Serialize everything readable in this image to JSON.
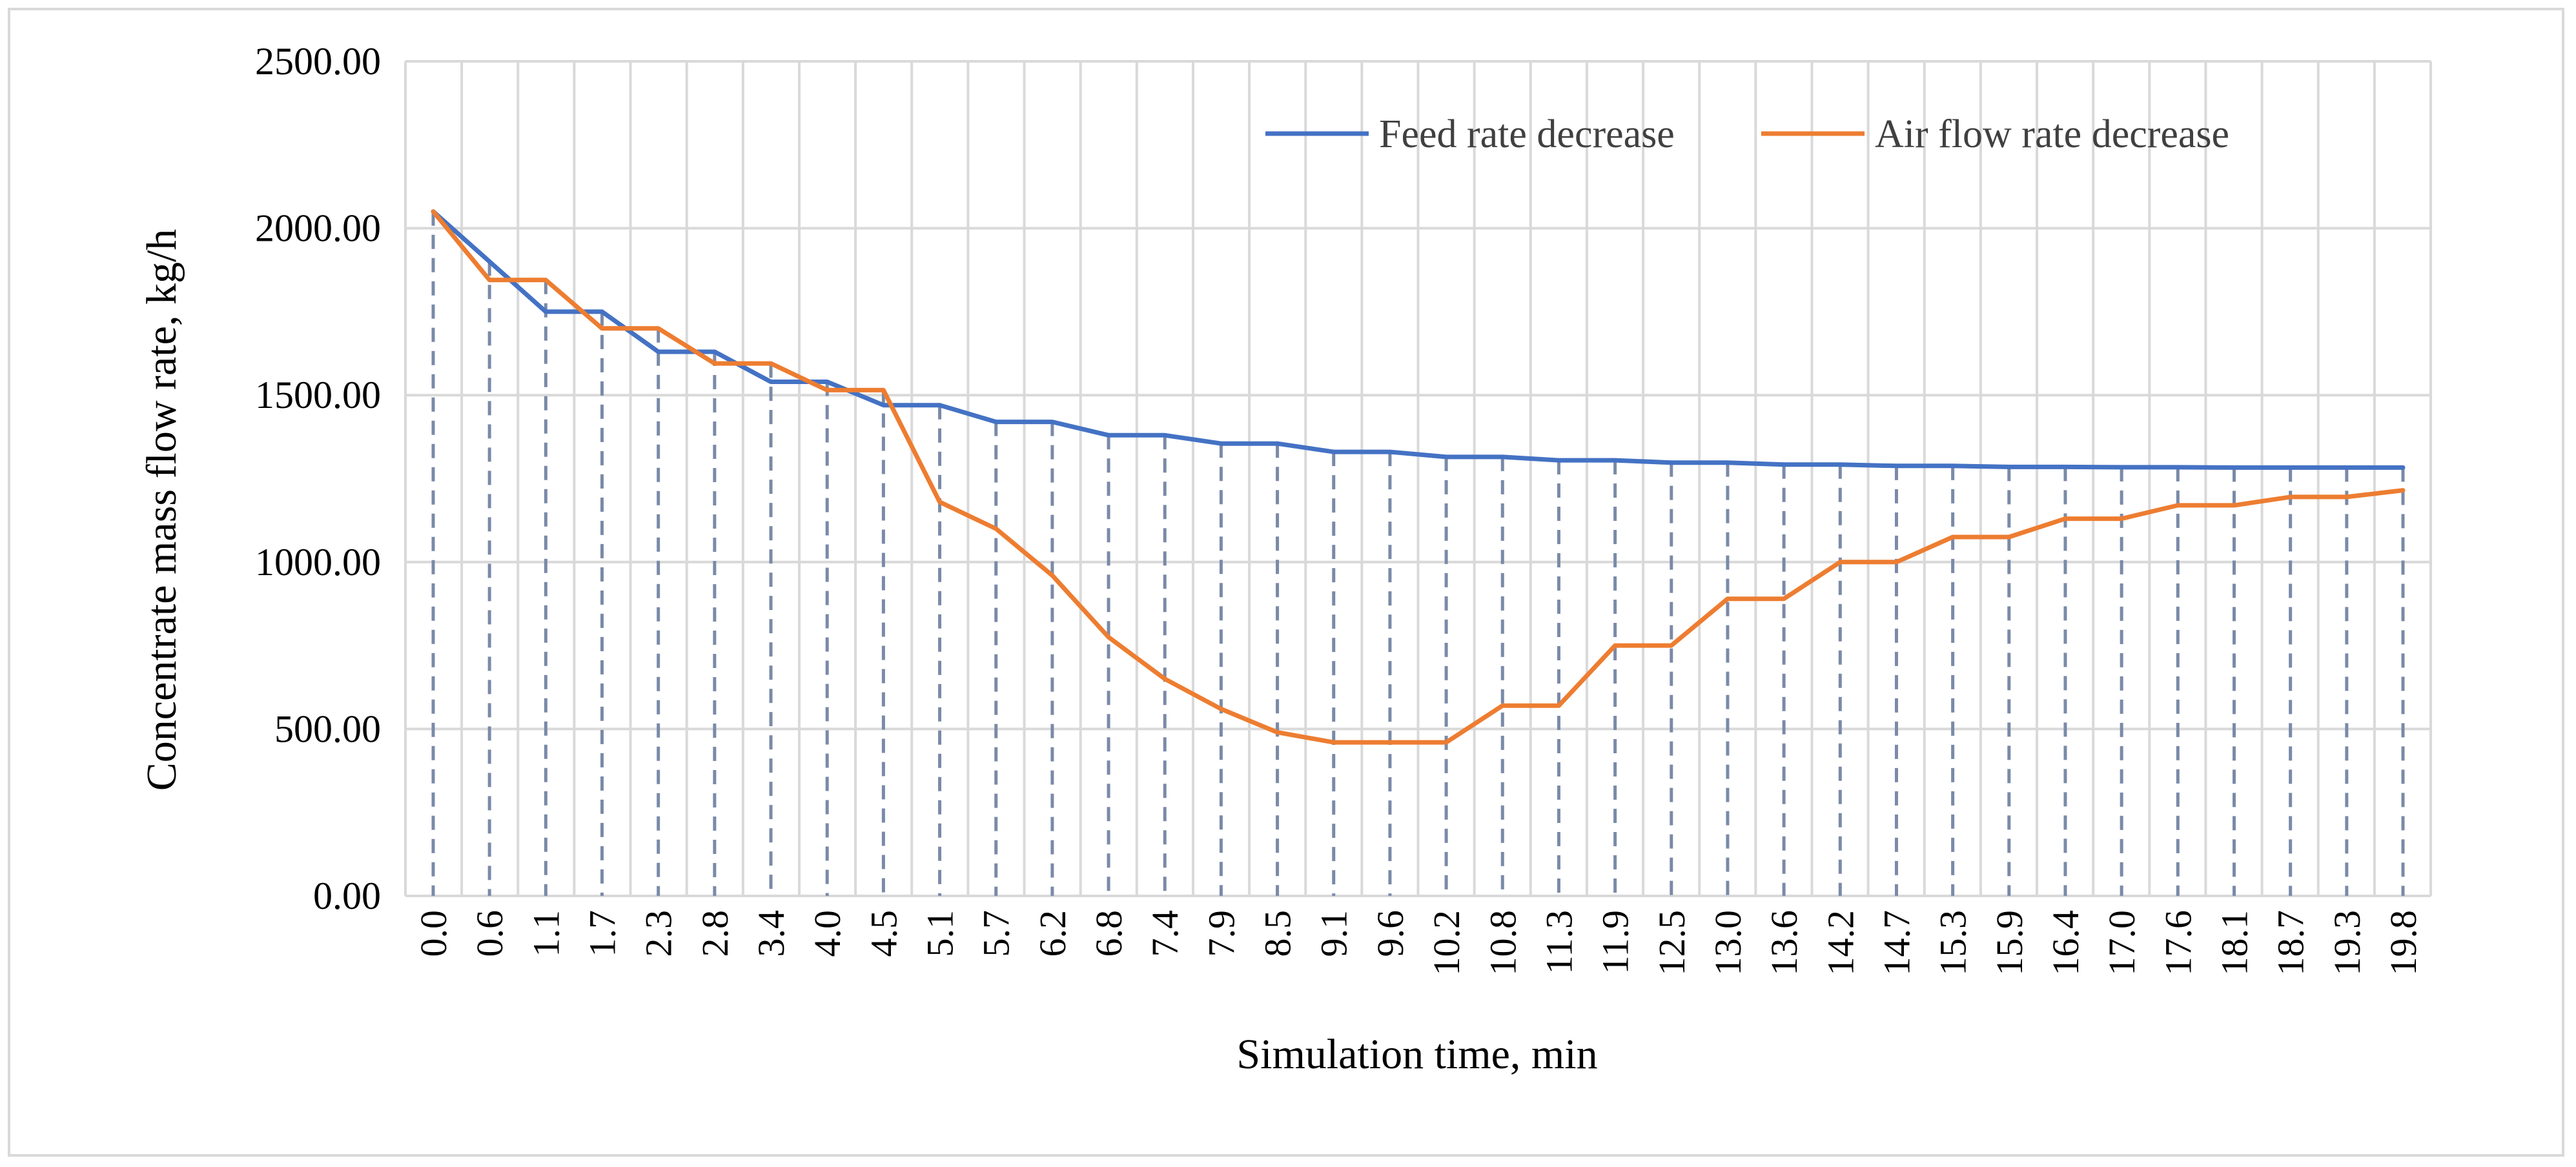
{
  "chart_data": {
    "type": "line",
    "title": "",
    "xlabel": "Simulation time, min",
    "ylabel": "Concentrate mass flow rate, kg/h",
    "ylim": [
      0,
      2500
    ],
    "yticks": [
      "0.00",
      "500.00",
      "1000.00",
      "1500.00",
      "2000.00",
      "2500.00"
    ],
    "categories": [
      "0.0",
      "0.6",
      "1.1",
      "1.7",
      "2.3",
      "2.8",
      "3.4",
      "4.0",
      "4.5",
      "5.1",
      "5.7",
      "6.2",
      "6.8",
      "7.4",
      "7.9",
      "8.5",
      "9.1",
      "9.6",
      "10.2",
      "10.8",
      "11.3",
      "11.9",
      "12.5",
      "13.0",
      "13.6",
      "14.2",
      "14.7",
      "15.3",
      "15.9",
      "16.4",
      "17.0",
      "17.6",
      "18.1",
      "18.7",
      "19.3",
      "19.8"
    ],
    "grid": true,
    "legend_position": "top-right",
    "dashed_drop_lines": true,
    "series": [
      {
        "name": "Feed rate decrease",
        "color": "#4472c4",
        "values": [
          2050,
          1900,
          1750,
          1750,
          1630,
          1630,
          1540,
          1540,
          1470,
          1470,
          1420,
          1420,
          1380,
          1380,
          1355,
          1355,
          1330,
          1330,
          1315,
          1315,
          1305,
          1305,
          1298,
          1298,
          1292,
          1292,
          1288,
          1288,
          1285,
          1285,
          1284,
          1284,
          1283,
          1283,
          1283,
          1283
        ]
      },
      {
        "name": "Air flow rate decrease",
        "color": "#ed7d31",
        "values": [
          2050,
          1845,
          1845,
          1700,
          1700,
          1595,
          1595,
          1515,
          1515,
          1180,
          1100,
          960,
          775,
          650,
          560,
          490,
          460,
          460,
          460,
          570,
          570,
          750,
          750,
          890,
          890,
          1000,
          1000,
          1075,
          1075,
          1130,
          1130,
          1170,
          1170,
          1195,
          1195,
          1215
        ]
      }
    ]
  },
  "colors": {
    "grid": "#d9d9d9",
    "drop_line": "#7a8aa8",
    "frame": "#d9d9d9"
  }
}
